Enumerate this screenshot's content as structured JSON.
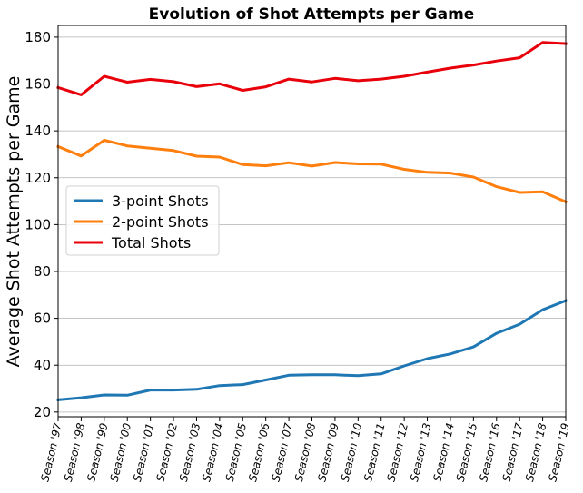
{
  "chart_data": {
    "type": "line",
    "title": "Evolution of Shot Attempts per Game",
    "xlabel": "",
    "ylabel": "Average Shot Attempts per Game",
    "categories": [
      "Season '97",
      "Season '98",
      "Season '99",
      "Season '00",
      "Season '01",
      "Season '02",
      "Season '03",
      "Season '04",
      "Season '05",
      "Season '06",
      "Season '07",
      "Season '08",
      "Season '09",
      "Season '10",
      "Season '11",
      "Season '12",
      "Season '13",
      "Season '14",
      "Season '15",
      "Season '16",
      "Season '17",
      "Season '18",
      "Season '19"
    ],
    "ylim": [
      18,
      185
    ],
    "yticks": [
      20,
      40,
      60,
      80,
      100,
      120,
      140,
      160,
      180
    ],
    "grid": "horizontal",
    "legend_position": "center-left",
    "series": [
      {
        "name": "3-point Shots",
        "color": "#1f77b4",
        "values": [
          25.2,
          26.1,
          27.3,
          27.2,
          29.4,
          29.4,
          29.7,
          31.3,
          31.7,
          33.7,
          35.7,
          35.9,
          35.9,
          35.5,
          36.3,
          39.7,
          42.8,
          44.8,
          47.8,
          53.6,
          57.5,
          63.7,
          67.5
        ]
      },
      {
        "name": "2-point Shots",
        "color": "#ff7f0e",
        "values": [
          133.3,
          129.3,
          136.0,
          133.6,
          132.6,
          131.6,
          129.2,
          128.8,
          125.6,
          125.1,
          126.4,
          125.0,
          126.5,
          125.9,
          125.8,
          123.6,
          122.3,
          122.0,
          120.3,
          116.2,
          113.7,
          114.0,
          109.7
        ]
      },
      {
        "name": "Total Shots",
        "color": "#e8000b",
        "values": [
          158.5,
          155.4,
          163.3,
          160.8,
          162.0,
          161.0,
          158.9,
          160.1,
          157.3,
          158.8,
          162.1,
          160.9,
          162.4,
          161.4,
          162.1,
          163.3,
          165.1,
          166.8,
          168.1,
          169.8,
          171.2,
          177.7,
          177.2
        ]
      }
    ]
  }
}
